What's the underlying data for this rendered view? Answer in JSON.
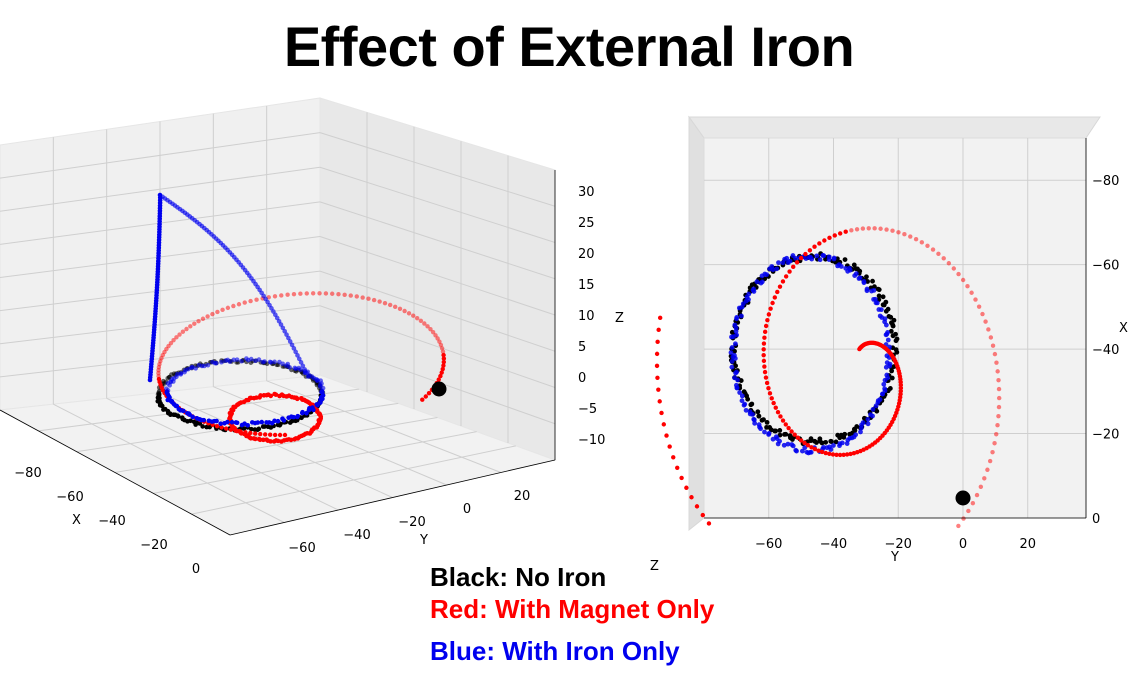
{
  "title": "Effect of External Iron",
  "legend": [
    {
      "text": "Black: No Iron",
      "color": "#000000"
    },
    {
      "text": "Red: With Magnet Only",
      "color": "#ff0000"
    },
    {
      "text": "Blue: With Iron Only",
      "color": "#0000ee"
    }
  ],
  "chart_data": [
    {
      "type": "scatter",
      "view": "3d-perspective",
      "xlabel": "X",
      "ylabel": "Y",
      "zlabel": "Z",
      "xticks": [
        "−80",
        "−60",
        "−40",
        "−20",
        "0"
      ],
      "yticks": [
        "−60",
        "−40",
        "−20",
        "0",
        "20"
      ],
      "zticks": [
        "30",
        "25",
        "20",
        "15",
        "10",
        "5",
        "0",
        "−5",
        "−10"
      ],
      "grid": true,
      "series": [
        {
          "color": "#000000",
          "description_shape": "ellipse loop",
          "marker": "small-dot"
        },
        {
          "color": "#ff0000",
          "description_shape": "outward spiral",
          "marker": "small-dot"
        },
        {
          "color": "#0000ee",
          "description_shape": "loop with vertical lobe",
          "marker": "small-dot"
        }
      ],
      "origin_marker": {
        "color": "#000000"
      }
    },
    {
      "type": "scatter",
      "view": "top-down",
      "xlabel": "Y",
      "ylabel": "X",
      "zlabel": "Z",
      "xticks": [
        "−60",
        "−40",
        "−20",
        "0",
        "20"
      ],
      "yticks": [
        "−80",
        "−60",
        "−40",
        "−20",
        "0"
      ],
      "xlim": [
        -80,
        38
      ],
      "ylim": [
        0,
        -90
      ],
      "grid": true,
      "series": [
        {
          "color": "#000000",
          "center": [
            -46,
            -40
          ],
          "radius_y": 22,
          "radius_x": 25
        },
        {
          "color": "#0000ee",
          "center": [
            -47,
            -39
          ],
          "radius_y": 22,
          "radius_x": 25
        },
        {
          "color": "#ff0000",
          "spiral": true
        }
      ],
      "origin_marker": {
        "x": 0,
        "y": 0,
        "color": "#000000"
      }
    }
  ]
}
